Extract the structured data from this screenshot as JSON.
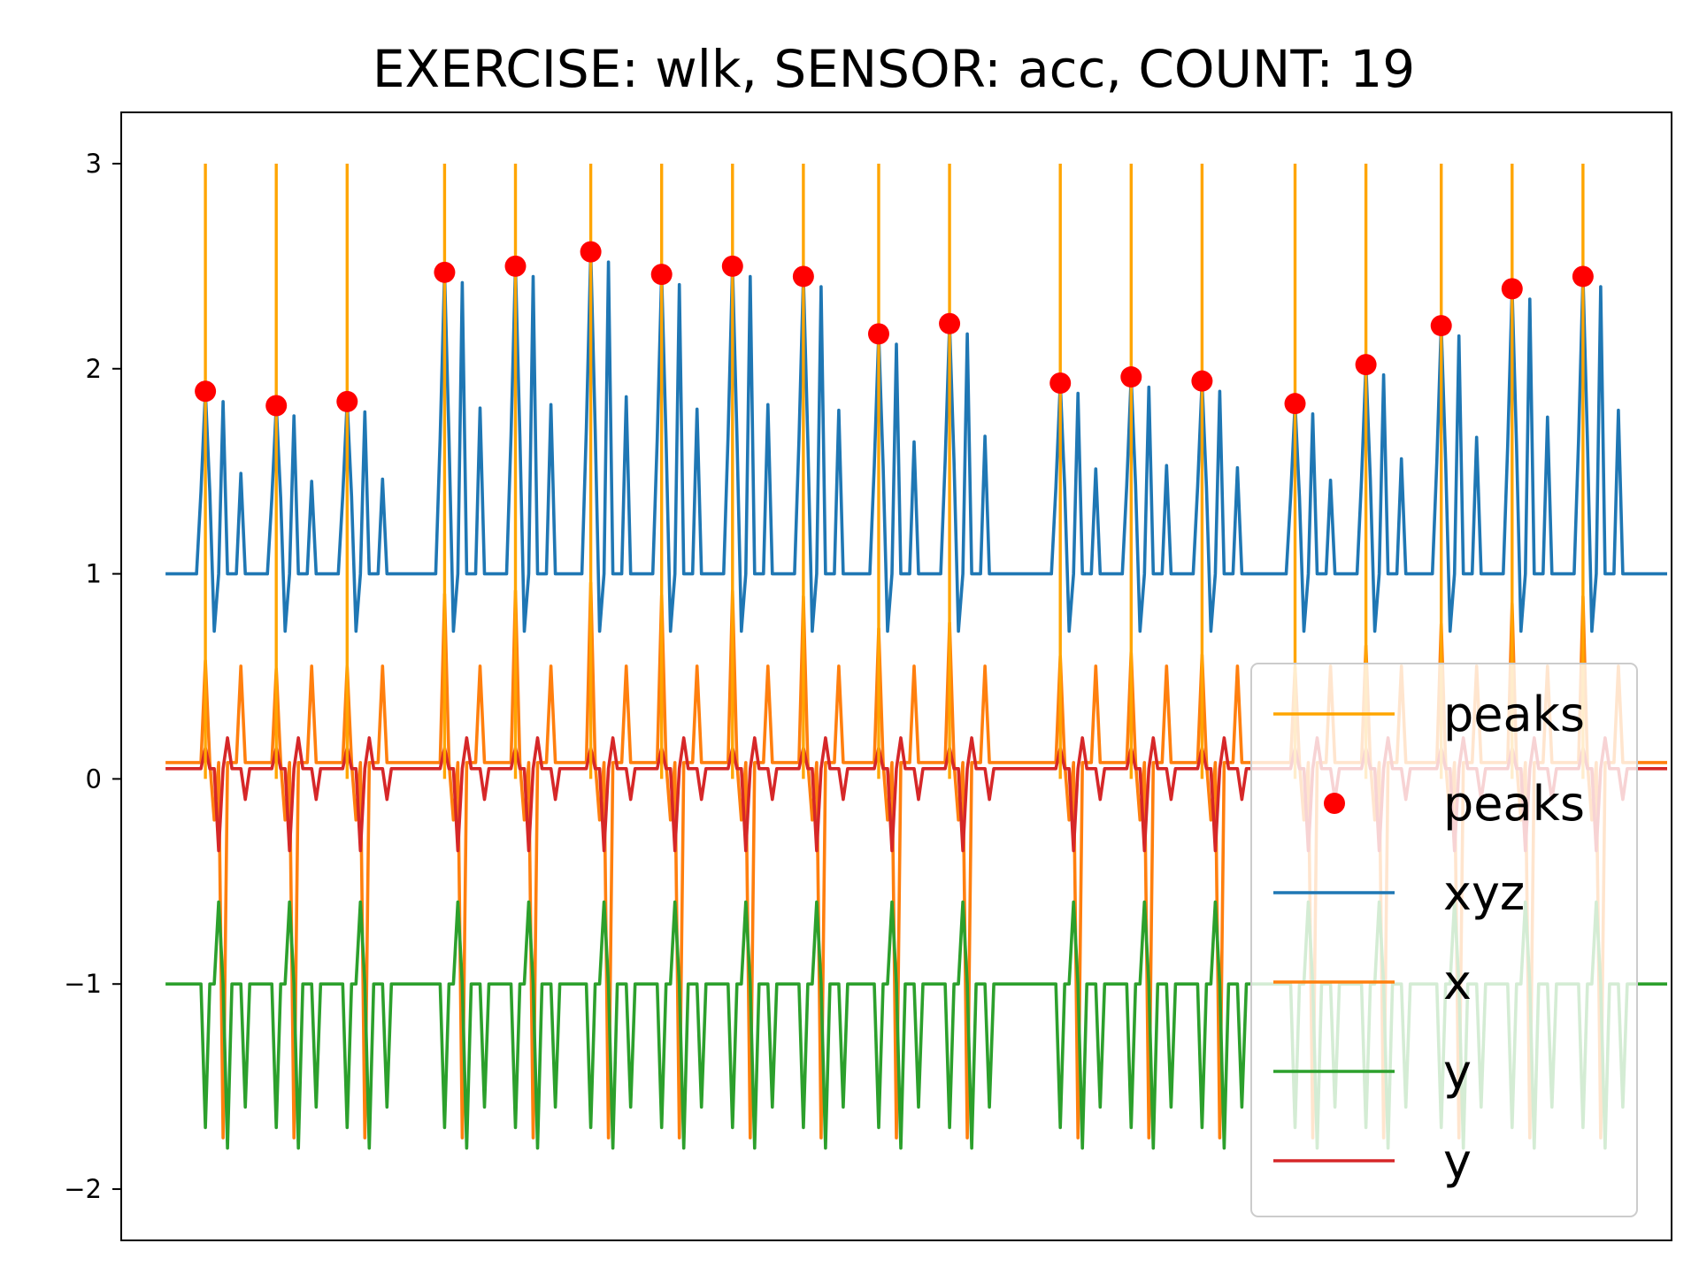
{
  "chart_data": {
    "type": "line",
    "title": "EXERCISE: wlk, SENSOR: acc, COUNT: 19",
    "xlabel": "",
    "ylabel": "",
    "xlim": [
      -10,
      340
    ],
    "ylim": [
      -2.25,
      3.25
    ],
    "y_ticks": [
      {
        "value": 3,
        "label": "3"
      },
      {
        "value": 2,
        "label": "2"
      },
      {
        "value": 1,
        "label": "1"
      },
      {
        "value": 0,
        "label": "0"
      },
      {
        "value": -1,
        "label": "−1"
      },
      {
        "value": -2,
        "label": "−2"
      }
    ],
    "x_ticks_visible": false,
    "grid": false,
    "legend_position": "lower right",
    "peaks": {
      "indices": [
        9,
        25,
        41,
        63,
        79,
        96,
        112,
        128,
        144,
        161,
        177,
        202,
        218,
        234,
        255,
        271,
        288,
        304,
        320
      ],
      "values": [
        1.89,
        1.82,
        1.84,
        2.47,
        2.5,
        2.57,
        2.46,
        2.5,
        2.45,
        2.17,
        2.22,
        1.93,
        1.96,
        1.94,
        1.83,
        2.02,
        2.21,
        2.39,
        2.45
      ],
      "line_top": 3.0,
      "line_color": "#FFA500",
      "marker_color": "#FF0000"
    },
    "series": [
      {
        "name": "xyz",
        "color": "#1F77B4",
        "base": 1.0,
        "peak_factor": 1.0,
        "dip": 0.72,
        "shape": "xyz"
      },
      {
        "name": "x",
        "color": "#FF7F0E",
        "base": 0.08,
        "peak_factor": 0.62,
        "dip": -1.75,
        "shape": "x"
      },
      {
        "name": "y",
        "color": "#2CA02C",
        "base": -1.0,
        "peak_factor": 0.4,
        "dip": -1.8,
        "shape": "y"
      },
      {
        "name": "y",
        "color": "#D62728",
        "base": 0.05,
        "peak_factor": 0.12,
        "dip": -0.35,
        "shape": "z"
      }
    ],
    "legend": [
      {
        "label": "peaks",
        "kind": "line",
        "color": "#FFA500"
      },
      {
        "label": "peaks",
        "kind": "marker",
        "color": "#FF0000"
      },
      {
        "label": "xyz",
        "kind": "line",
        "color": "#1F77B4"
      },
      {
        "label": "x",
        "kind": "line",
        "color": "#FF7F0E"
      },
      {
        "label": "y",
        "kind": "line",
        "color": "#2CA02C"
      },
      {
        "label": "y",
        "kind": "line",
        "color": "#D62728"
      }
    ]
  }
}
